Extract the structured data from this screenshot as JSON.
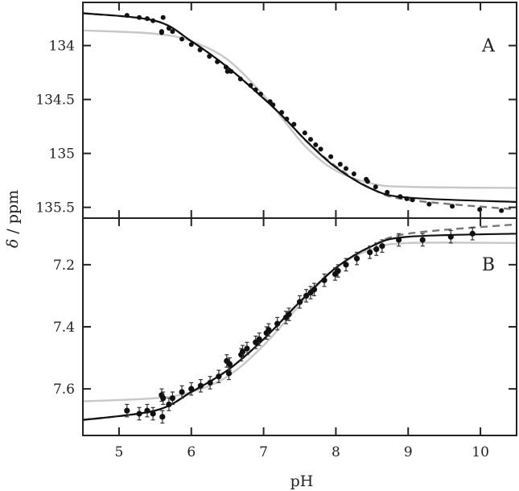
{
  "chart_data": [
    {
      "panel": "A",
      "type": "scatter",
      "title": "",
      "panel_label": "A",
      "xlabel": "pH",
      "ylabel": "δ / ppm",
      "xlim": [
        4.5,
        10.5
      ],
      "ylim": [
        133.6,
        135.6
      ],
      "y_inverted": true,
      "yticks": [
        134,
        134.5,
        135,
        135.5
      ],
      "ytick_labels": [
        "134",
        "134.5",
        "135",
        "135.5"
      ],
      "xticks": [
        5,
        6,
        7,
        8,
        9,
        10
      ],
      "grid": false,
      "series": [
        {
          "name": "data",
          "style": "points",
          "color": "#111111",
          "x": [
            5.11,
            5.28,
            5.39,
            5.47,
            5.61,
            5.59,
            5.59,
            5.69,
            5.74,
            5.87,
            6.0,
            6.12,
            6.25,
            6.36,
            6.48,
            6.5,
            6.55,
            6.68,
            6.82,
            6.89,
            6.96,
            7.09,
            7.13,
            7.25,
            7.32,
            7.42,
            7.57,
            7.65,
            7.72,
            7.79,
            7.93,
            8.06,
            8.14,
            8.25,
            8.42,
            8.44,
            8.55,
            8.71,
            8.89,
            8.98,
            9.06,
            9.29,
            9.61,
            9.99,
            10.29
          ],
          "y": [
            133.72,
            133.74,
            133.75,
            133.77,
            133.74,
            133.87,
            133.88,
            133.84,
            133.87,
            133.94,
            133.99,
            134.04,
            134.1,
            134.15,
            134.2,
            134.24,
            134.24,
            134.31,
            134.37,
            134.41,
            134.45,
            134.52,
            134.55,
            134.62,
            134.68,
            134.73,
            134.81,
            134.87,
            134.92,
            134.96,
            135.03,
            135.1,
            135.14,
            135.19,
            135.24,
            135.26,
            135.31,
            135.36,
            135.4,
            135.42,
            135.43,
            135.47,
            135.49,
            135.52,
            135.53
          ]
        },
        {
          "name": "fit (solid)",
          "style": "line",
          "color": "#111111",
          "x": [
            4.5,
            5.5,
            6.0,
            6.5,
            7.0,
            7.3,
            7.6,
            8.0,
            8.5,
            9.0,
            10.5
          ],
          "y": [
            133.7,
            133.77,
            133.96,
            134.2,
            134.49,
            134.68,
            134.89,
            135.13,
            135.33,
            135.41,
            135.45
          ]
        },
        {
          "name": "fit (dashed)",
          "style": "dashed",
          "color": "#777777",
          "x": [
            4.5,
            5.5,
            6.0,
            6.5,
            7.0,
            7.3,
            7.6,
            8.0,
            8.5,
            9.0,
            10.5
          ],
          "y": [
            133.7,
            133.77,
            133.96,
            134.2,
            134.49,
            134.68,
            134.89,
            135.12,
            135.33,
            135.43,
            135.52
          ]
        },
        {
          "name": "fit (gray)",
          "style": "line",
          "color": "#c8c8c8",
          "x": [
            4.5,
            5.5,
            6.0,
            6.5,
            7.0,
            7.3,
            7.6,
            8.0,
            8.5,
            9.0,
            10.5
          ],
          "y": [
            133.86,
            133.89,
            133.96,
            134.13,
            134.46,
            134.71,
            134.95,
            135.16,
            135.28,
            135.31,
            135.32
          ]
        }
      ]
    },
    {
      "panel": "B",
      "type": "scatter",
      "title": "",
      "panel_label": "B",
      "xlabel": "pH",
      "ylabel": "δ / ppm",
      "xlim": [
        4.5,
        10.5
      ],
      "ylim": [
        7.05,
        7.75
      ],
      "y_inverted": true,
      "yticks": [
        7.2,
        7.4,
        7.6
      ],
      "ytick_labels": [
        "7.2",
        "7.4",
        "7.6"
      ],
      "xticks": [
        5,
        6,
        7,
        8,
        9,
        10
      ],
      "xtick_labels": [
        "5",
        "6",
        "7",
        "8",
        "9",
        "10"
      ],
      "grid": false,
      "error_bars": true,
      "series": [
        {
          "name": "data",
          "style": "points_with_errorbars",
          "color": "#111111",
          "error": 0.02,
          "x": [
            5.11,
            5.28,
            5.39,
            5.47,
            5.59,
            5.61,
            5.6,
            5.69,
            5.74,
            5.87,
            6.0,
            6.13,
            6.26,
            6.38,
            6.49,
            6.52,
            6.53,
            6.69,
            6.71,
            6.77,
            6.89,
            6.94,
            7.04,
            7.07,
            7.19,
            7.31,
            7.35,
            7.5,
            7.59,
            7.65,
            7.7,
            7.84,
            7.99,
            8.03,
            8.14,
            8.29,
            8.47,
            8.56,
            8.64,
            8.87,
            9.2,
            9.59,
            9.89
          ],
          "y": [
            7.67,
            7.68,
            7.67,
            7.68,
            7.62,
            7.63,
            7.69,
            7.65,
            7.63,
            7.61,
            7.6,
            7.59,
            7.58,
            7.56,
            7.51,
            7.55,
            7.52,
            7.49,
            7.48,
            7.47,
            7.45,
            7.44,
            7.42,
            7.41,
            7.39,
            7.37,
            7.36,
            7.32,
            7.3,
            7.29,
            7.28,
            7.25,
            7.23,
            7.22,
            7.2,
            7.18,
            7.16,
            7.15,
            7.14,
            7.12,
            7.12,
            7.11,
            7.1
          ]
        },
        {
          "name": "fit (solid)",
          "style": "line",
          "color": "#111111",
          "x": [
            4.5,
            5.5,
            6.0,
            6.5,
            7.0,
            7.5,
            8.0,
            8.5,
            9.0,
            10.5
          ],
          "y": [
            7.7,
            7.67,
            7.61,
            7.54,
            7.44,
            7.32,
            7.21,
            7.14,
            7.11,
            7.1
          ]
        },
        {
          "name": "fit (dashed)",
          "style": "dashed",
          "color": "#777777",
          "x": [
            4.5,
            5.5,
            6.0,
            6.5,
            7.0,
            7.5,
            8.0,
            8.5,
            9.0,
            10.5
          ],
          "y": [
            7.7,
            7.67,
            7.61,
            7.54,
            7.44,
            7.32,
            7.21,
            7.14,
            7.1,
            7.07
          ]
        },
        {
          "name": "fit (gray)",
          "style": "line",
          "color": "#c8c8c8",
          "x": [
            4.5,
            5.5,
            6.0,
            6.5,
            7.0,
            7.5,
            8.0,
            8.5,
            9.0,
            10.5
          ],
          "y": [
            7.64,
            7.63,
            7.61,
            7.56,
            7.46,
            7.33,
            7.21,
            7.15,
            7.13,
            7.13
          ]
        }
      ]
    }
  ],
  "labels": {
    "xlabel": "pH",
    "ylabel": "δ / ppm",
    "panel_a": "A",
    "panel_b": "B"
  }
}
